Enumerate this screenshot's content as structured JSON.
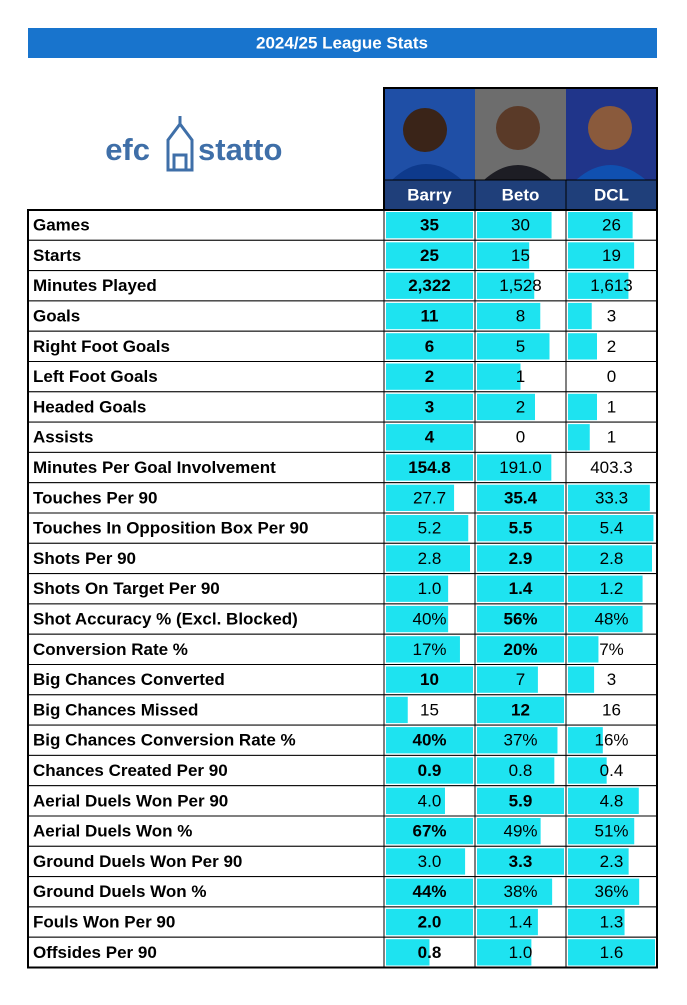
{
  "header": {
    "title": "2024/25 League Stats"
  },
  "logo": {
    "left": "efc",
    "right": "statto"
  },
  "players": [
    "Barry",
    "Beto",
    "DCL"
  ],
  "table": {
    "rows": [
      {
        "label": "Games",
        "values": [
          "35",
          "30",
          "26"
        ],
        "bold": 0
      },
      {
        "label": "Starts",
        "values": [
          "25",
          "15",
          "19"
        ],
        "bold": 0
      },
      {
        "label": "Minutes Played",
        "values": [
          "2,322",
          "1,528",
          "1,613"
        ],
        "bold": 0
      },
      {
        "label": "Goals",
        "values": [
          "11",
          "8",
          "3"
        ],
        "bold": 0
      },
      {
        "label": "Right Foot Goals",
        "values": [
          "6",
          "5",
          "2"
        ],
        "bold": 0
      },
      {
        "label": "Left Foot Goals",
        "values": [
          "2",
          "1",
          "0"
        ],
        "bold": 0
      },
      {
        "label": "Headed Goals",
        "values": [
          "3",
          "2",
          "1"
        ],
        "bold": 0
      },
      {
        "label": "Assists",
        "values": [
          "4",
          "0",
          "1"
        ],
        "bold": 0
      },
      {
        "label": "Minutes Per Goal Involvement",
        "values": [
          "154.8",
          "191.0",
          "403.3"
        ],
        "bold": 0,
        "lower_better": true
      },
      {
        "label": "Touches Per 90",
        "values": [
          "27.7",
          "35.4",
          "33.3"
        ],
        "bold": 1
      },
      {
        "label": "Touches In Opposition Box Per 90",
        "values": [
          "5.2",
          "5.5",
          "5.4"
        ],
        "bold": 1
      },
      {
        "label": "Shots Per 90",
        "values": [
          "2.8",
          "2.9",
          "2.8"
        ],
        "bold": 1
      },
      {
        "label": "Shots On Target Per 90",
        "values": [
          "1.0",
          "1.4",
          "1.2"
        ],
        "bold": 1
      },
      {
        "label": "Shot Accuracy % (Excl. Blocked)",
        "values": [
          "40%",
          "56%",
          "48%"
        ],
        "bold": 1
      },
      {
        "label": "Conversion Rate %",
        "values": [
          "17%",
          "20%",
          "7%"
        ],
        "bold": 1
      },
      {
        "label": "Big Chances Converted",
        "values": [
          "10",
          "7",
          "3"
        ],
        "bold": 0
      },
      {
        "label": "Big Chances Missed",
        "values": [
          "15",
          "12",
          "16"
        ],
        "bold": 1,
        "lower_better": true
      },
      {
        "label": "Big Chances Conversion Rate %",
        "values": [
          "40%",
          "37%",
          "16%"
        ],
        "bold": 0
      },
      {
        "label": "Chances Created Per 90",
        "values": [
          "0.9",
          "0.8",
          "0.4"
        ],
        "bold": 0
      },
      {
        "label": "Aerial Duels Won Per 90",
        "values": [
          "4.0",
          "5.9",
          "4.8"
        ],
        "bold": 1
      },
      {
        "label": "Aerial Duels Won %",
        "values": [
          "67%",
          "49%",
          "51%"
        ],
        "bold": 0
      },
      {
        "label": "Ground Duels Won Per 90",
        "values": [
          "3.0",
          "3.3",
          "2.3"
        ],
        "bold": 1
      },
      {
        "label": "Ground Duels Won %",
        "values": [
          "44%",
          "38%",
          "36%"
        ],
        "bold": 0
      },
      {
        "label": "Fouls Won Per 90",
        "values": [
          "2.0",
          "1.4",
          "1.3"
        ],
        "bold": 0
      },
      {
        "label": "Offsides Per 90",
        "values": [
          "0.8",
          "1.0",
          "1.6"
        ],
        "bold": 0
      }
    ]
  }
}
